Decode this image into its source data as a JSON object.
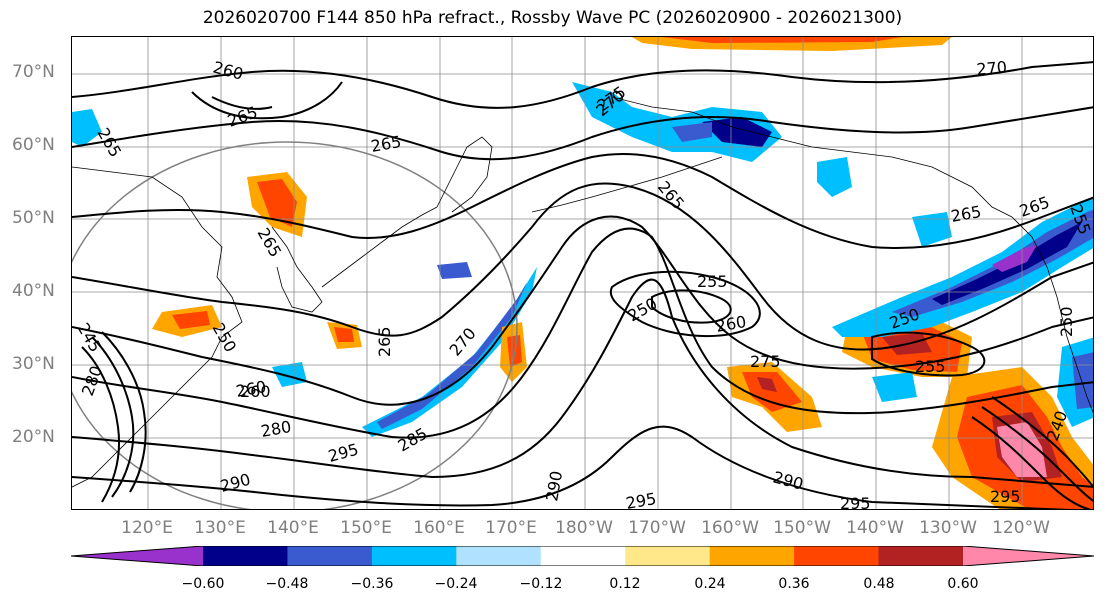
{
  "title": "2026020700 F144 850 hPa refract., Rossby Wave PC (2026020900 - 2026021300)",
  "lat_labels": [
    "70°N",
    "60°N",
    "50°N",
    "40°N",
    "30°N",
    "20°N"
  ],
  "lon_labels": [
    "120°E",
    "130°E",
    "140°E",
    "150°E",
    "160°E",
    "170°E",
    "180°W",
    "170°W",
    "160°W",
    "150°W",
    "140°W",
    "130°W",
    "120°W"
  ],
  "colorbar": {
    "ticks": [
      "−0.60",
      "−0.48",
      "−0.36",
      "−0.24",
      "−0.12",
      "0.12",
      "0.24",
      "0.36",
      "0.48",
      "0.60"
    ],
    "colors": [
      "#9932cc",
      "#00008b",
      "#3a5bcf",
      "#00bfff",
      "#b0e2ff",
      "#ffffff",
      "#ffe88a",
      "#ffa500",
      "#ff4500",
      "#b22222",
      "#ff88aa"
    ]
  },
  "contour_labels": [
    {
      "text": "260"
    },
    {
      "text": "265"
    },
    {
      "text": "265"
    },
    {
      "text": "265"
    },
    {
      "text": "265"
    },
    {
      "text": "275"
    },
    {
      "text": "265"
    },
    {
      "text": "265"
    },
    {
      "text": "270"
    },
    {
      "text": "260"
    },
    {
      "text": "255"
    },
    {
      "text": "250"
    },
    {
      "text": "260"
    },
    {
      "text": "275"
    },
    {
      "text": "250"
    },
    {
      "text": "255"
    },
    {
      "text": "270"
    },
    {
      "text": "265"
    },
    {
      "text": "285"
    },
    {
      "text": "295"
    },
    {
      "text": "290"
    },
    {
      "text": "290"
    },
    {
      "text": "295"
    },
    {
      "text": "290"
    },
    {
      "text": "295"
    },
    {
      "text": "295"
    },
    {
      "text": "280"
    },
    {
      "text": "260"
    },
    {
      "text": "250"
    },
    {
      "text": "245"
    },
    {
      "text": "280"
    },
    {
      "text": "270"
    },
    {
      "text": "265"
    },
    {
      "text": "250"
    },
    {
      "text": "255"
    },
    {
      "text": "240"
    }
  ]
}
